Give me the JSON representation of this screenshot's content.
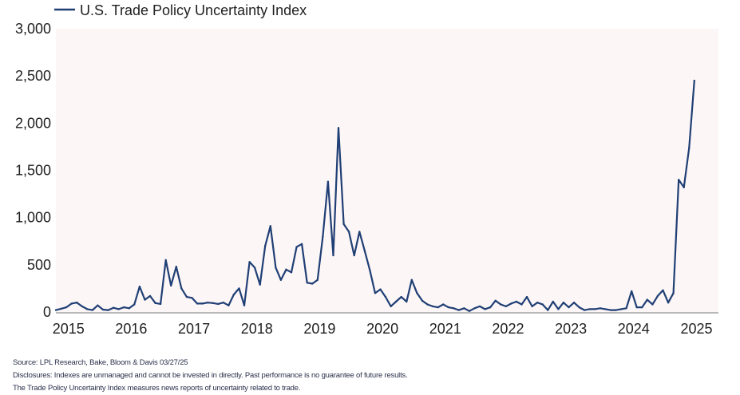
{
  "chart_data": {
    "type": "line",
    "title": "",
    "legend": {
      "position": "top-left",
      "entries": [
        "U.S. Trade Policy Uncertainty Index"
      ]
    },
    "xlabel": "",
    "ylabel": "",
    "ylim": [
      0,
      3000
    ],
    "yticks": [
      0,
      500,
      1000,
      1500,
      2000,
      2500,
      3000
    ],
    "ytick_labels": [
      "0",
      "500",
      "1,000",
      "1,500",
      "2,000",
      "2,500",
      "3,000"
    ],
    "xlim": [
      2014.85,
      2025.4
    ],
    "xticks": [
      2015,
      2016,
      2017,
      2018,
      2019,
      2020,
      2021,
      2022,
      2023,
      2024,
      2025
    ],
    "xtick_labels": [
      "2015",
      "2016",
      "2017",
      "2018",
      "2019",
      "2020",
      "2021",
      "2022",
      "2023",
      "2024",
      "2025"
    ],
    "grid": false,
    "background": "#fdf6f6",
    "series": [
      {
        "name": "U.S. Trade Policy Uncertainty Index",
        "color": "#1f3f75",
        "x_start": 2014.85,
        "x_step_months": 1,
        "values": [
          20,
          35,
          50,
          90,
          100,
          60,
          30,
          20,
          70,
          25,
          20,
          45,
          30,
          50,
          40,
          80,
          270,
          130,
          170,
          95,
          85,
          550,
          280,
          480,
          250,
          160,
          150,
          90,
          90,
          100,
          95,
          85,
          100,
          70,
          185,
          250,
          70,
          530,
          470,
          290,
          700,
          910,
          470,
          340,
          450,
          420,
          690,
          720,
          310,
          300,
          340,
          800,
          1380,
          600,
          1950,
          930,
          850,
          600,
          850,
          650,
          440,
          200,
          240,
          160,
          60,
          110,
          160,
          110,
          340,
          200,
          120,
          80,
          60,
          50,
          80,
          50,
          40,
          20,
          40,
          10,
          40,
          60,
          30,
          50,
          120,
          80,
          60,
          90,
          110,
          80,
          160,
          60,
          100,
          80,
          20,
          110,
          30,
          100,
          50,
          100,
          50,
          20,
          30,
          30,
          40,
          30,
          20,
          20,
          30,
          40,
          220,
          50,
          50,
          130,
          80,
          170,
          230,
          100,
          200,
          1400,
          1320,
          1740,
          2450
        ]
      }
    ]
  },
  "footnotes": {
    "source": "Source: LPL Research, Bake, Bloom & Davis 03/27/25",
    "disclosures": "Disclosures: Indexes are unmanaged and cannot be invested in directly. Past performance is no guarantee of future results.",
    "note": "The Trade Policy Uncertainty Index measures news reports of uncertainty related to trade."
  }
}
